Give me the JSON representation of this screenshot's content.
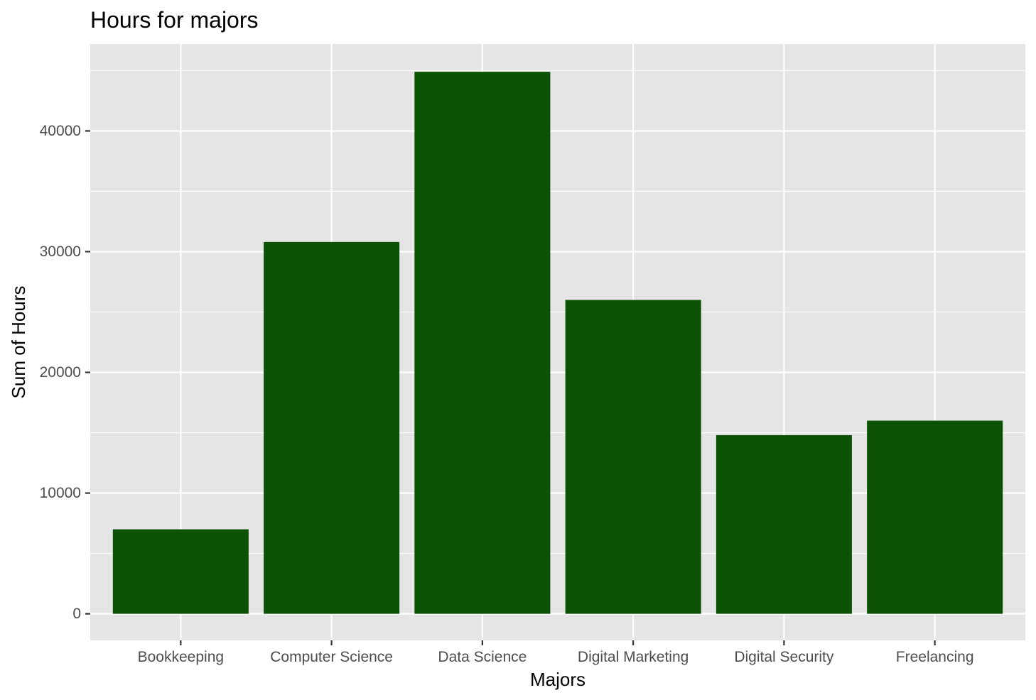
{
  "chart_data": {
    "type": "bar",
    "title": "Hours for majors",
    "xlabel": "Majors",
    "ylabel": "Sum of Hours",
    "categories": [
      "Bookkeeping",
      "Computer Science",
      "Data Science",
      "Digital Marketing",
      "Digital Security",
      "Freelancing"
    ],
    "values": [
      7000,
      30800,
      44900,
      26000,
      14800,
      16000
    ],
    "ylim": [
      -2200,
      47200
    ],
    "yticks": [
      0,
      10000,
      20000,
      30000,
      40000
    ],
    "ytick_labels": [
      "0",
      "10000",
      "20000",
      "30000",
      "40000"
    ],
    "grid": true,
    "legend": "none",
    "colors": {
      "bar": "#0b5204",
      "panel": "#e5e5e5",
      "grid": "#ffffff",
      "tick": "#333333",
      "tick_label": "#4d4d4d"
    }
  }
}
